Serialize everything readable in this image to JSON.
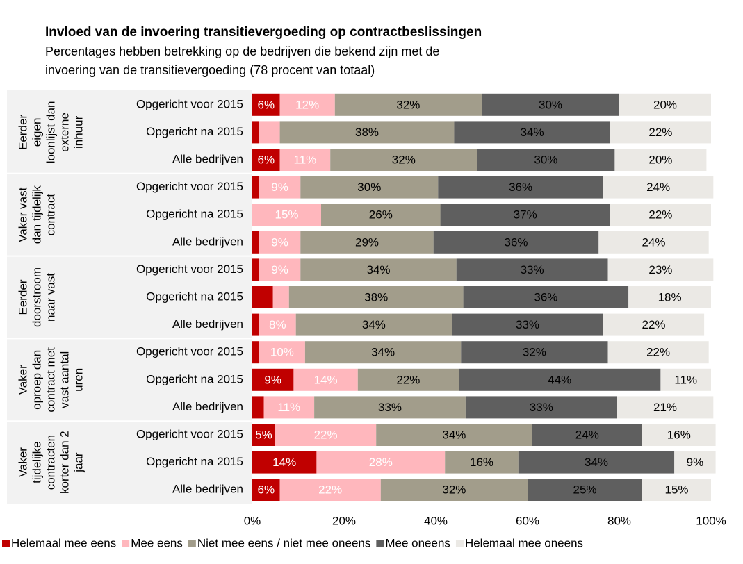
{
  "chart_data": {
    "type": "stacked_bar_horizontal",
    "title": "Invloed van de invoering transitievergoeding op contractbeslissingen",
    "subtitle": [
      "Percentages hebben betrekking op de bedrijven die bekend zijn met de",
      "invoering van de transitievergoeding (78 procent van totaal)"
    ],
    "groups": [
      [
        "Eerder",
        "eigen",
        "loonlijst dan",
        "externe",
        "inhuur"
      ],
      [
        "Vaker vast",
        "dan tijdelijk",
        "contract"
      ],
      [
        "Eerder",
        "doorstroom",
        "naar vast"
      ],
      [
        "Vaker",
        "oproep dan",
        "contract met",
        "vast aantal",
        "uren"
      ],
      [
        "Vaker",
        "tijdelijke",
        "contracten",
        "korter dan 2",
        "jaar"
      ]
    ],
    "categories": [
      "Opgericht voor 2015",
      "Opgericht na 2015",
      "Alle bedrijven",
      "Opgericht voor 2015",
      "Opgericht na 2015",
      "Alle bedrijven",
      "Opgericht voor 2015",
      "Opgericht na 2015",
      "Alle bedrijven",
      "Opgericht voor 2015",
      "Opgericht na 2015",
      "Alle bedrijven",
      "Opgericht voor 2015",
      "Opgericht na 2015",
      "Alle bedrijven"
    ],
    "series": [
      {
        "name": "Helemaal mee eens",
        "color": "#c00000",
        "label_color": "#ffffff",
        "values": [
          6,
          1.5,
          6,
          1.5,
          0,
          1.5,
          1.5,
          4.5,
          1.5,
          1.5,
          9,
          2.5,
          5,
          14,
          6
        ],
        "value_labels": [
          "6%",
          null,
          "6%",
          null,
          null,
          null,
          null,
          null,
          null,
          null,
          "9%",
          null,
          "5%",
          "14%",
          "6%"
        ]
      },
      {
        "name": "Mee eens",
        "color": "#ffb7bd",
        "label_color": "#ffffff",
        "values": [
          12,
          4.5,
          11,
          9,
          15,
          9,
          9,
          3.5,
          8,
          10,
          14,
          11,
          22,
          28,
          22
        ],
        "value_labels": [
          "12%",
          null,
          "11%",
          "9%",
          "15%",
          "9%",
          "9%",
          null,
          "8%",
          "10%",
          "14%",
          "11%",
          "22%",
          "28%",
          "22%"
        ]
      },
      {
        "name": "Niet mee eens / niet mee oneens",
        "color": "#a29d8b",
        "label_color": "#000000",
        "values": [
          32,
          38,
          32,
          30,
          26,
          29,
          34,
          38,
          34,
          34,
          22,
          33,
          34,
          16,
          32
        ],
        "value_labels": [
          "32%",
          "38%",
          "32%",
          "30%",
          "26%",
          "29%",
          "34%",
          "38%",
          "34%",
          "34%",
          "22%",
          "33%",
          "34%",
          "16%",
          "32%"
        ]
      },
      {
        "name": "Mee oneens",
        "color": "#5f5f5f",
        "label_color": "#000000",
        "values": [
          30,
          34,
          30,
          36,
          37,
          36,
          33,
          36,
          33,
          32,
          44,
          33,
          24,
          34,
          25
        ],
        "value_labels": [
          "30%",
          "34%",
          "30%",
          "36%",
          "37%",
          "36%",
          "33%",
          "36%",
          "33%",
          "32%",
          "44%",
          "33%",
          "24%",
          "34%",
          "25%"
        ]
      },
      {
        "name": "Helemaal mee oneens",
        "color": "#ebe9e5",
        "label_color": "#000000",
        "values": [
          20,
          22,
          20,
          24,
          22,
          24,
          23,
          18,
          22,
          22,
          11,
          21,
          16,
          9,
          15
        ],
        "value_labels": [
          "20%",
          "22%",
          "20%",
          "24%",
          "22%",
          "24%",
          "23%",
          "18%",
          "22%",
          "22%",
          "11%",
          "21%",
          "16%",
          "9%",
          "15%"
        ]
      }
    ],
    "xlim": [
      0,
      100
    ],
    "xticks": [
      {
        "value": 0,
        "label": "0%"
      },
      {
        "value": 20,
        "label": "20%"
      },
      {
        "value": 40,
        "label": "40%"
      },
      {
        "value": 60,
        "label": "60%"
      },
      {
        "value": 80,
        "label": "80%"
      },
      {
        "value": 100,
        "label": "100%"
      }
    ],
    "legend": "bottom"
  }
}
